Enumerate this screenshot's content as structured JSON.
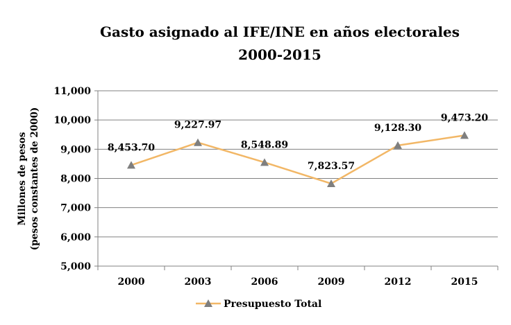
{
  "chart_data": {
    "type": "line",
    "title": "Gasto asignado al IFE/INE en años electorales",
    "subtitle": "2000-2015",
    "ylabel_line1": "Millones de pesos",
    "ylabel_line2": "(pesos constantes de 2000)",
    "xlabel": "",
    "categories": [
      "2000",
      "2003",
      "2006",
      "2009",
      "2012",
      "2015"
    ],
    "series": [
      {
        "name": "Presupuesto Total",
        "values": [
          8453.7,
          9227.97,
          8548.89,
          7823.57,
          9128.3,
          9473.2
        ],
        "labels": [
          "8,453.70",
          "9,227.97",
          "8,548.89",
          "7,823.57",
          "9,128.30",
          "9,473.20"
        ],
        "color": "#F2B766",
        "marker": "triangle",
        "marker_color": "#7F7F7F"
      }
    ],
    "ylim": [
      5000,
      11000
    ],
    "yticks": [
      5000,
      6000,
      7000,
      8000,
      9000,
      10000,
      11000
    ],
    "ytick_labels": [
      "5,000",
      "6,000",
      "7,000",
      "8,000",
      "9,000",
      "10,000",
      "11,000"
    ],
    "grid": true,
    "grid_color": "#808080",
    "legend_position": "bottom"
  }
}
